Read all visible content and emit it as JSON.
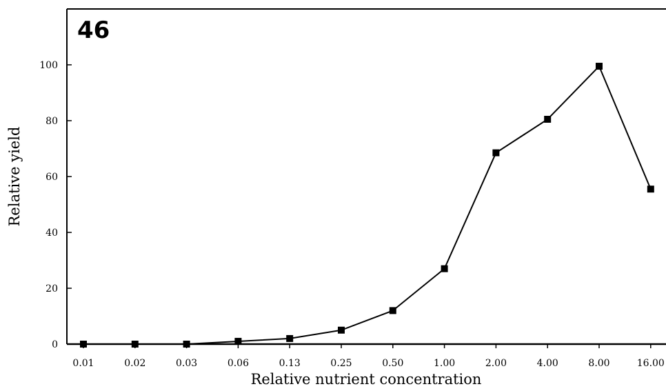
{
  "chart_data": {
    "type": "line",
    "panel_label": "46",
    "xlabel": "Relative nutrient concentration",
    "ylabel": "Relative yield",
    "categories": [
      "0.01",
      "0.02",
      "0.03",
      "0.06",
      "0.13",
      "0.25",
      "0.50",
      "1.00",
      "2.00",
      "4.00",
      "8.00",
      "16.00"
    ],
    "series": [
      {
        "values": [
          0,
          0,
          0,
          1,
          2,
          5,
          12,
          27,
          68.5,
          80.5,
          99.5,
          55.5
        ]
      }
    ],
    "yticks": [
      0,
      20,
      40,
      60,
      80,
      100
    ],
    "ylim": [
      0,
      120
    ],
    "grid": false,
    "legend": "none",
    "marker": "square",
    "colors": {
      "line": "#000000",
      "marker": "#000000",
      "axis": "#000000"
    }
  }
}
